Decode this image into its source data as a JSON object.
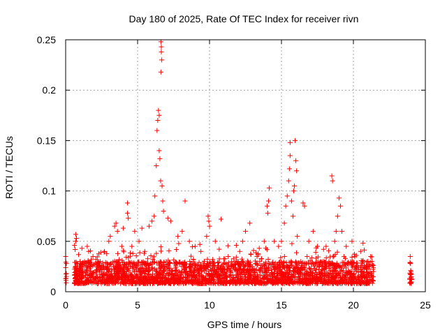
{
  "chart_data": {
    "type": "scatter",
    "title": "Day 180 of 2025, Rate Of TEC Index for receiver rivn",
    "xlabel": "GPS time / hours",
    "ylabel": "ROTI / TECUs",
    "xlim": [
      0,
      25
    ],
    "ylim": [
      0,
      0.25
    ],
    "x_ticks": [
      0,
      5,
      10,
      15,
      20,
      25
    ],
    "x_tick_labels": [
      "0",
      "5",
      "10",
      "15",
      "20",
      "25"
    ],
    "y_ticks": [
      0,
      0.05,
      0.1,
      0.15,
      0.2,
      0.25
    ],
    "y_tick_labels": [
      "0",
      "0.05",
      "0.1",
      "0.15",
      "0.2",
      "0.25"
    ],
    "grid": true,
    "marker": "+",
    "color": "#ff0000",
    "series": [
      {
        "name": "ROTI",
        "points": [
          [
            0.0,
            0.013
          ],
          [
            0.0,
            0.024
          ],
          [
            0.0,
            0.035
          ],
          [
            0.05,
            0.018
          ],
          [
            0.05,
            0.028
          ],
          [
            0.7,
            0.05
          ],
          [
            0.7,
            0.057
          ],
          [
            0.75,
            0.053
          ],
          [
            0.75,
            0.02
          ],
          [
            0.8,
            0.015
          ],
          [
            1.0,
            0.03
          ],
          [
            1.2,
            0.025
          ],
          [
            1.5,
            0.045
          ],
          [
            1.6,
            0.04
          ],
          [
            1.9,
            0.035
          ],
          [
            2.1,
            0.032
          ],
          [
            2.4,
            0.03
          ],
          [
            2.7,
            0.04
          ],
          [
            3.0,
            0.05
          ],
          [
            3.1,
            0.055
          ],
          [
            3.4,
            0.065
          ],
          [
            3.5,
            0.068
          ],
          [
            3.6,
            0.06
          ],
          [
            3.9,
            0.045
          ],
          [
            4.0,
            0.063
          ],
          [
            4.3,
            0.088
          ],
          [
            4.3,
            0.078
          ],
          [
            4.35,
            0.073
          ],
          [
            4.6,
            0.045
          ],
          [
            4.8,
            0.06
          ],
          [
            5.1,
            0.05
          ],
          [
            5.3,
            0.063
          ],
          [
            5.5,
            0.04
          ],
          [
            5.8,
            0.065
          ],
          [
            6.0,
            0.07
          ],
          [
            6.15,
            0.075
          ],
          [
            6.2,
            0.095
          ],
          [
            6.3,
            0.125
          ],
          [
            6.35,
            0.16
          ],
          [
            6.4,
            0.17
          ],
          [
            6.45,
            0.18
          ],
          [
            6.5,
            0.175
          ],
          [
            6.5,
            0.14
          ],
          [
            6.55,
            0.132
          ],
          [
            6.6,
            0.11
          ],
          [
            6.62,
            0.248
          ],
          [
            6.65,
            0.243
          ],
          [
            6.65,
            0.238
          ],
          [
            6.68,
            0.23
          ],
          [
            6.62,
            0.218
          ],
          [
            6.7,
            0.105
          ],
          [
            6.75,
            0.09
          ],
          [
            6.8,
            0.08
          ],
          [
            7.1,
            0.073
          ],
          [
            7.3,
            0.07
          ],
          [
            7.8,
            0.055
          ],
          [
            8.1,
            0.06
          ],
          [
            8.3,
            0.09
          ],
          [
            8.6,
            0.05
          ],
          [
            9.0,
            0.045
          ],
          [
            9.4,
            0.04
          ],
          [
            9.8,
            0.055
          ],
          [
            9.9,
            0.075
          ],
          [
            9.95,
            0.07
          ],
          [
            10.0,
            0.065
          ],
          [
            10.4,
            0.05
          ],
          [
            10.8,
            0.072
          ],
          [
            11.3,
            0.035
          ],
          [
            12.1,
            0.04
          ],
          [
            12.3,
            0.05
          ],
          [
            12.5,
            0.06
          ],
          [
            12.8,
            0.068
          ],
          [
            13.3,
            0.035
          ],
          [
            13.8,
            0.05
          ],
          [
            14.0,
            0.085
          ],
          [
            14.05,
            0.078
          ],
          [
            14.1,
            0.09
          ],
          [
            14.15,
            0.103
          ],
          [
            14.5,
            0.05
          ],
          [
            14.8,
            0.045
          ],
          [
            15.0,
            0.05
          ],
          [
            15.2,
            0.068
          ],
          [
            15.3,
            0.085
          ],
          [
            15.4,
            0.095
          ],
          [
            15.5,
            0.11
          ],
          [
            15.55,
            0.122
          ],
          [
            15.6,
            0.135
          ],
          [
            15.6,
            0.148
          ],
          [
            15.7,
            0.09
          ],
          [
            15.8,
            0.075
          ],
          [
            15.85,
            0.1
          ],
          [
            15.9,
            0.105
          ],
          [
            15.95,
            0.15
          ],
          [
            16.0,
            0.13
          ],
          [
            16.05,
            0.12
          ],
          [
            16.1,
            0.055
          ],
          [
            16.5,
            0.088
          ],
          [
            16.6,
            0.085
          ],
          [
            16.9,
            0.05
          ],
          [
            17.2,
            0.06
          ],
          [
            17.5,
            0.045
          ],
          [
            18.1,
            0.045
          ],
          [
            18.5,
            0.115
          ],
          [
            18.55,
            0.11
          ],
          [
            18.7,
            0.05
          ],
          [
            18.8,
            0.06
          ],
          [
            18.9,
            0.075
          ],
          [
            19.0,
            0.093
          ],
          [
            19.1,
            0.085
          ],
          [
            19.2,
            0.06
          ],
          [
            19.5,
            0.045
          ],
          [
            19.9,
            0.05
          ],
          [
            20.5,
            0.04
          ],
          [
            21.0,
            0.03
          ],
          [
            21.2,
            0.035
          ],
          [
            21.3,
            0.03
          ],
          [
            21.4,
            0.02
          ],
          [
            23.95,
            0.035
          ],
          [
            23.97,
            0.028
          ],
          [
            24.0,
            0.02
          ],
          [
            24.02,
            0.015
          ],
          [
            24.05,
            0.012
          ]
        ]
      }
    ],
    "baseline_band": {
      "segments": [
        [
          0.0,
          0.05
        ],
        [
          0.6,
          21.4
        ],
        [
          23.9,
          24.05
        ]
      ],
      "y_range": [
        0.008,
        0.03
      ]
    }
  }
}
